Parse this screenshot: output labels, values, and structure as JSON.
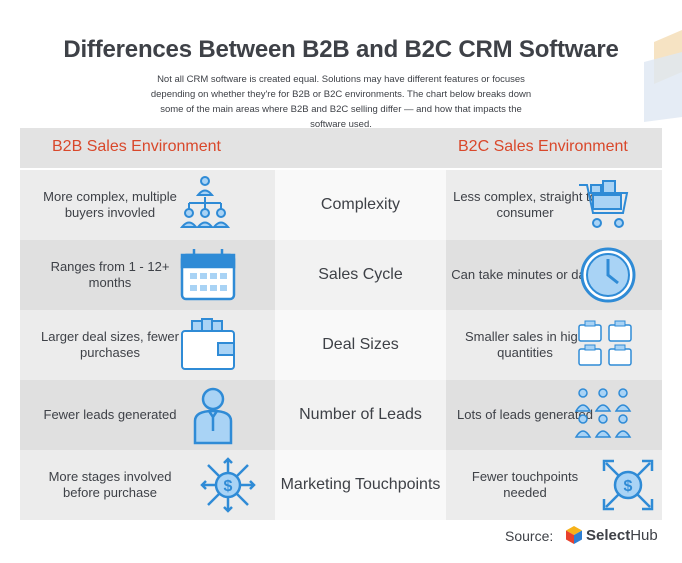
{
  "title": "Differences Between B2B and B2C CRM Software",
  "intro": "Not all CRM software is created equal. Solutions may have different features or focuses depending on whether they're for B2B or B2C environments. The chart below breaks down some of the main areas where B2B and B2C selling differ — and how that impacts the software used.",
  "headers": {
    "left": "B2B Sales Environment",
    "right": "B2C Sales Environment"
  },
  "rows": [
    {
      "b2b": "More complex, multiple buyers invovled",
      "category": "Complexity",
      "b2c": "Less complex, straight to consumer",
      "b2b_icon": "org-chart-icon",
      "b2c_icon": "shopping-cart-icon"
    },
    {
      "b2b": "Ranges from 1 - 12+ months",
      "category": "Sales Cycle",
      "b2c": "Can take minutes or days",
      "b2b_icon": "calendar-icon",
      "b2c_icon": "clock-icon"
    },
    {
      "b2b": "Larger deal sizes, fewer purchases",
      "category": "Deal Sizes",
      "b2c": "Smaller sales in high quantities",
      "b2b_icon": "wallet-cash-icon",
      "b2c_icon": "small-wallets-icon"
    },
    {
      "b2b": "Fewer leads generated",
      "category": "Number of Leads",
      "b2c": "Lots of leads generated",
      "b2b_icon": "single-person-icon",
      "b2c_icon": "people-group-icon"
    },
    {
      "b2b": "More stages involved before purchase",
      "category": "Marketing Touchpoints",
      "b2c": "Fewer touchpoints needed",
      "b2b_icon": "dollar-arrows-icon",
      "b2c_icon": "dollar-arrows-icon"
    }
  ],
  "source_label": "Source:",
  "logo": {
    "part1": "Select",
    "part2": "Hub"
  },
  "colors": {
    "accent": "#d9482b",
    "icon": "#2f8bd6",
    "icon_fill": "#a9d3f5",
    "text": "#3e4147"
  }
}
